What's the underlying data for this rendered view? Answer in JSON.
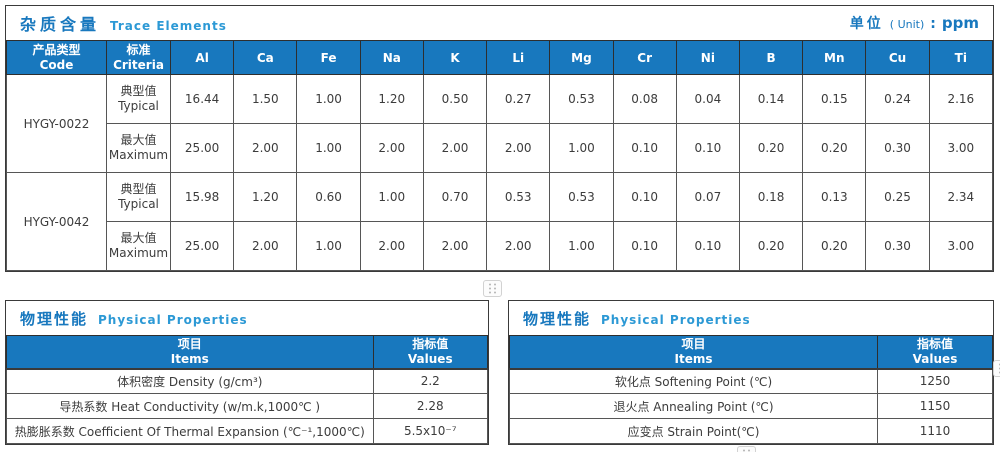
{
  "trace_table": {
    "title_zh": "杂质含量",
    "title_en": "Trace Elements",
    "unit": {
      "label_zh": "单位",
      "label_en": "( Unit)",
      "colon": ":",
      "value": "ppm"
    },
    "columns": {
      "code_zh": "产品类型",
      "code_en": "Code",
      "criteria_zh": "标准",
      "criteria_en": "Criteria"
    },
    "elements": [
      "Al",
      "Ca",
      "Fe",
      "Na",
      "K",
      "Li",
      "Mg",
      "Cr",
      "Ni",
      "B",
      "Mn",
      "Cu",
      "Ti"
    ],
    "groups": [
      {
        "code": "HYGY-0022",
        "rows": [
          {
            "criteria_zh": "典型值",
            "criteria_en": "Typical",
            "values": [
              "16.44",
              "1.50",
              "1.00",
              "1.20",
              "0.50",
              "0.27",
              "0.53",
              "0.08",
              "0.04",
              "0.14",
              "0.15",
              "0.24",
              "2.16"
            ]
          },
          {
            "criteria_zh": "最大值",
            "criteria_en": "Maximum",
            "values": [
              "25.00",
              "2.00",
              "1.00",
              "2.00",
              "2.00",
              "2.00",
              "1.00",
              "0.10",
              "0.10",
              "0.20",
              "0.20",
              "0.30",
              "3.00"
            ]
          }
        ]
      },
      {
        "code": "HYGY-0042",
        "rows": [
          {
            "criteria_zh": "典型值",
            "criteria_en": "Typical",
            "values": [
              "15.98",
              "1.20",
              "0.60",
              "1.00",
              "0.70",
              "0.53",
              "0.53",
              "0.10",
              "0.07",
              "0.18",
              "0.13",
              "0.25",
              "2.34"
            ]
          },
          {
            "criteria_zh": "最大值",
            "criteria_en": "Maximum",
            "values": [
              "25.00",
              "2.00",
              "1.00",
              "2.00",
              "2.00",
              "2.00",
              "1.00",
              "0.10",
              "0.10",
              "0.20",
              "0.20",
              "0.30",
              "3.00"
            ]
          }
        ]
      }
    ]
  },
  "physical_left": {
    "title_zh": "物理性能",
    "title_en": "Physical Properties",
    "col_items_zh": "项目",
    "col_items_en": "Items",
    "col_values_zh": "指标值",
    "col_values_en": "Values",
    "rows": [
      {
        "item": "体积密度 Density (g/cm³)",
        "value": "2.2"
      },
      {
        "item": "导热系数 Heat Conductivity (w/m.k,1000℃ )",
        "value": "2.28"
      },
      {
        "item": "热膨胀系数 Coefficient Of Thermal Expansion (℃⁻¹,1000℃)",
        "value": "5.5x10⁻⁷"
      }
    ]
  },
  "physical_right": {
    "title_zh": "物理性能",
    "title_en": "Physical Properties",
    "col_items_zh": "项目",
    "col_items_en": "Items",
    "col_values_zh": "指标值",
    "col_values_en": "Values",
    "rows": [
      {
        "item": "软化点 Softening Point (℃)",
        "value": "1250"
      },
      {
        "item": "退火点 Annealing Point (℃)",
        "value": "1150"
      },
      {
        "item": "应变点 Strain Point(℃)",
        "value": "1110"
      }
    ]
  },
  "icons": {
    "drag_handle": "six-dot-grip"
  },
  "colors": {
    "accent_blue": "#1878be",
    "subtitle_blue": "#2c99d5",
    "border_dark": "#3a3a3a"
  }
}
